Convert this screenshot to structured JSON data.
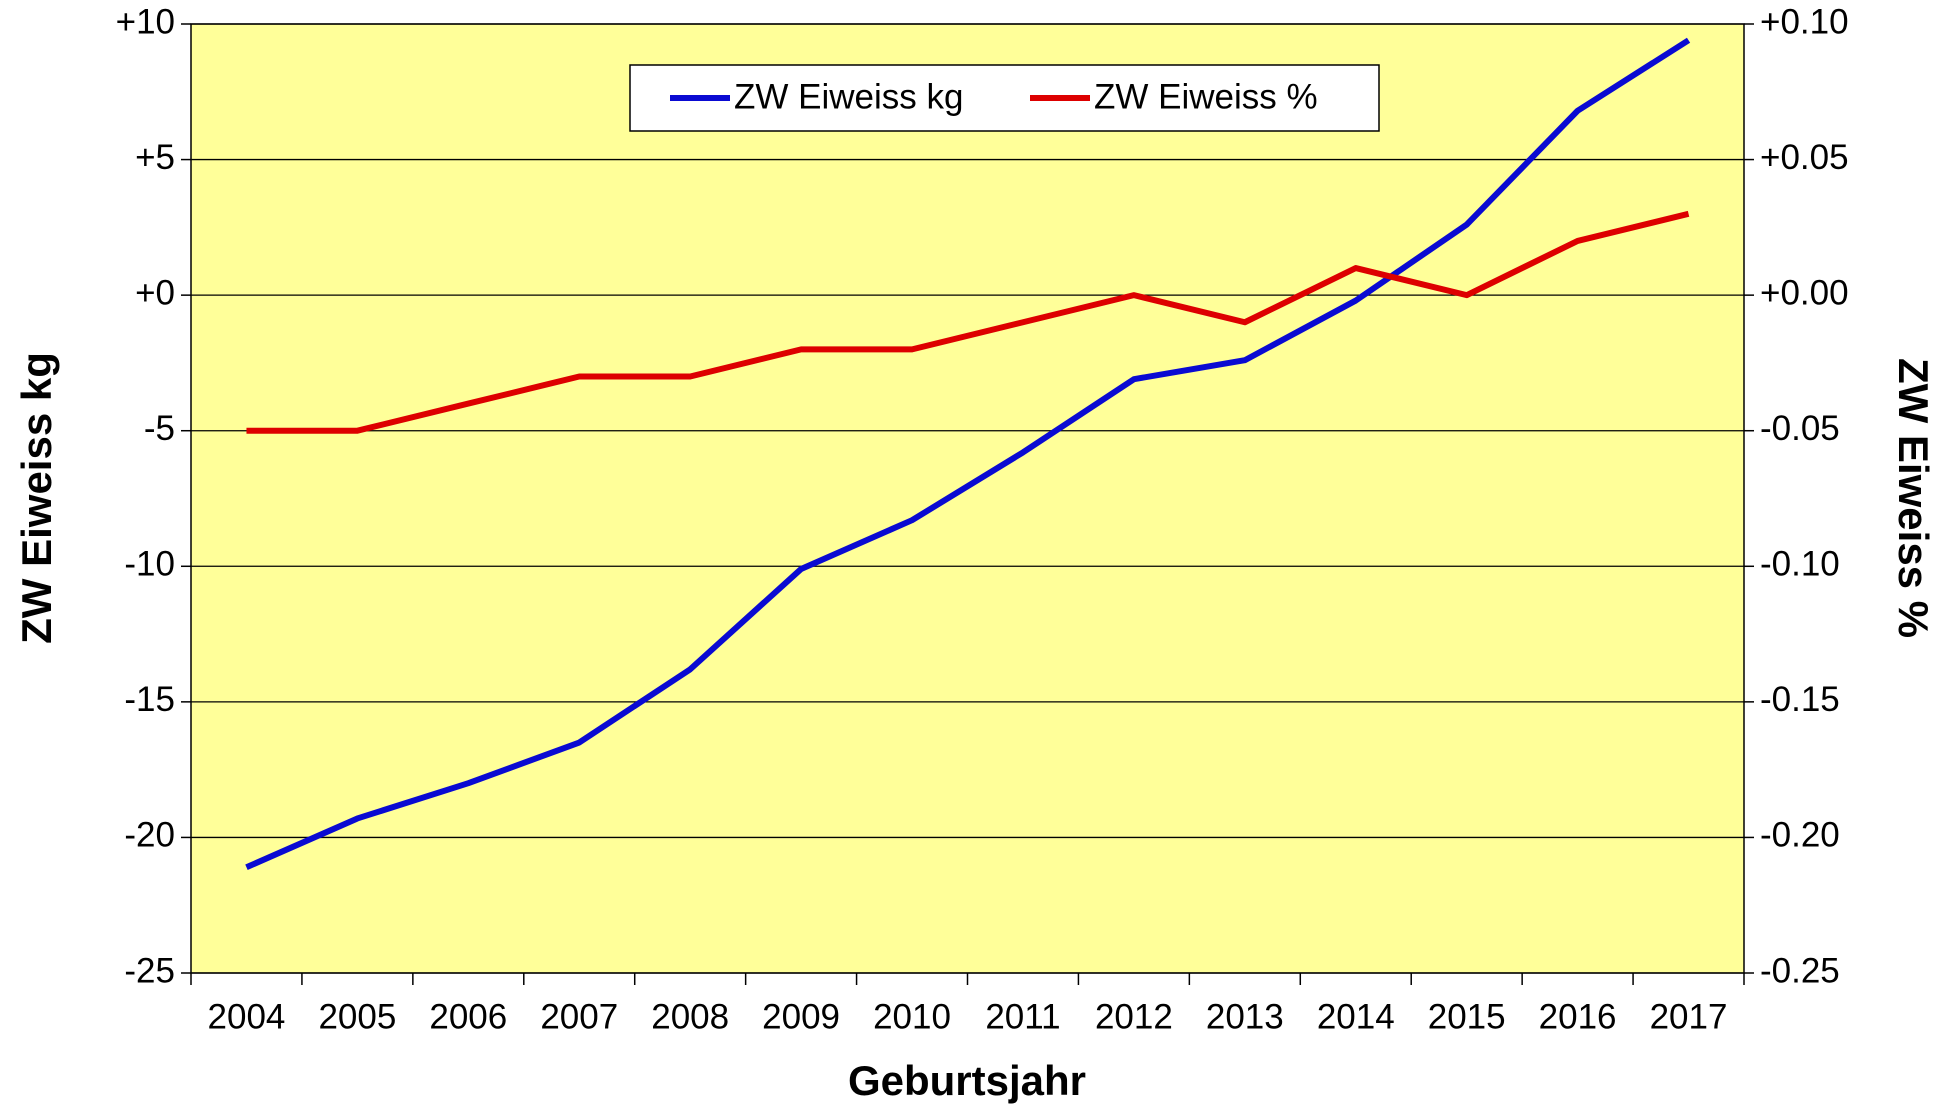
{
  "chart_data": {
    "type": "line",
    "x_label": "Geburtsjahr",
    "y_label": "ZW Eiweiss kg",
    "y2_label": "ZW Eiweiss %",
    "categories": [
      "2004",
      "2005",
      "2006",
      "2007",
      "2008",
      "2009",
      "2010",
      "2011",
      "2012",
      "2013",
      "2014",
      "2015",
      "2016",
      "2017"
    ],
    "series": [
      {
        "name": "ZW Eiweiss kg",
        "color": "#0a0ad2",
        "values": [
          -21.1,
          -19.3,
          -18.0,
          -16.5,
          -13.8,
          -10.1,
          -8.3,
          -5.8,
          -3.1,
          -2.4,
          -0.2,
          2.6,
          6.8,
          9.4
        ]
      },
      {
        "name": "ZW Eiweiss %",
        "color": "#dd0000",
        "axis": "y2",
        "values": [
          -0.05,
          -0.05,
          -0.04,
          -0.03,
          -0.03,
          -0.02,
          -0.02,
          -0.01,
          0.0,
          -0.01,
          0.01,
          0.0,
          0.02,
          0.03
        ]
      }
    ],
    "ylim": [
      -25,
      10
    ],
    "yticks": [
      {
        "value": 10,
        "label": "+10"
      },
      {
        "value": 5,
        "label": "+5"
      },
      {
        "value": 0,
        "label": "+0"
      },
      -5,
      -10,
      -15,
      -20,
      -25
    ],
    "y2lim": [
      -0.25,
      0.1
    ],
    "y2ticks": [
      {
        "value": 0.1,
        "label": "+0.10"
      },
      {
        "value": 0.05,
        "label": "+0.05"
      },
      {
        "value": 0,
        "label": "+0.00"
      },
      -0.05,
      {
        "value": -0.1,
        "label": "-0.10"
      },
      -0.15,
      {
        "value": -0.2,
        "label": "-0.20"
      },
      -0.25
    ],
    "grid": true,
    "background": "#ffff99",
    "legend": "top"
  }
}
